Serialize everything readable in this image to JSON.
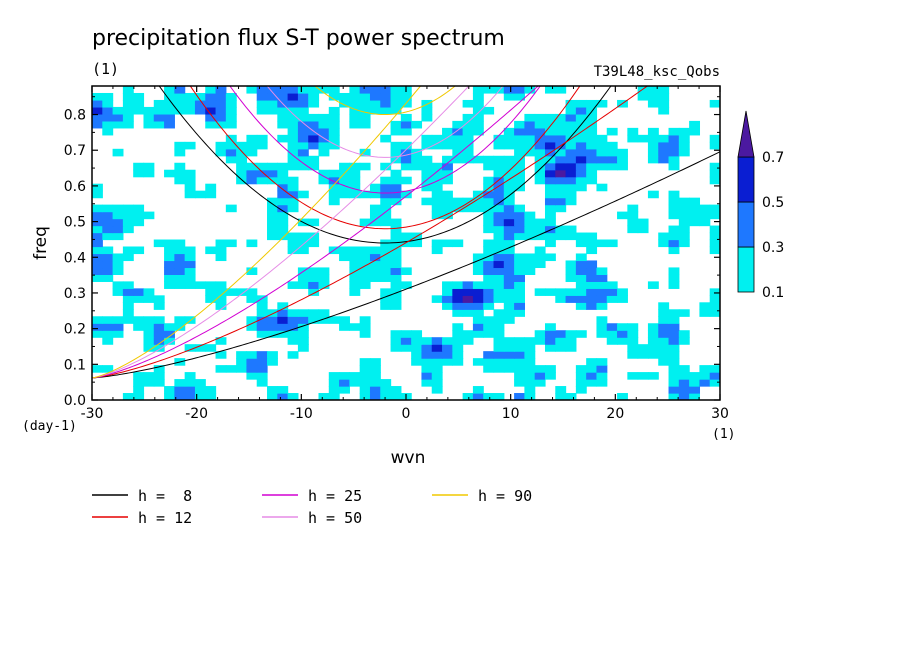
{
  "chart_data": {
    "type": "heatmap",
    "title": "precipitation flux S-T power spectrum",
    "subtitle_left": "(1)",
    "subtitle_right": "T39L48_ksc_Qobs",
    "xlabel": "wvn",
    "ylabel": "freq",
    "x_unit": "(1)",
    "y_unit": "(day-1)",
    "xlim": [
      -30,
      30
    ],
    "ylim": [
      0,
      0.88
    ],
    "x_ticks": [
      -30,
      -20,
      -10,
      0,
      10,
      20,
      30
    ],
    "x_tick_labels": [
      "-30",
      "-20",
      "-10",
      "0",
      "10",
      "20",
      "30"
    ],
    "y_ticks": [
      0.0,
      0.1,
      0.2,
      0.3,
      0.4,
      0.5,
      0.6,
      0.7,
      0.8
    ],
    "y_tick_labels": [
      "0.0",
      "0.1",
      "0.2",
      "0.3",
      "0.4",
      "0.5",
      "0.6",
      "0.7",
      "0.8"
    ],
    "colorbar": {
      "levels": [
        0.1,
        0.3,
        0.5,
        0.7
      ],
      "labels": [
        "0.1",
        "0.3",
        "0.5",
        "0.7"
      ],
      "colors": [
        "#00f0f0",
        "#1e78ff",
        "#0a1ed2",
        "#4b19a0"
      ],
      "extend": "max"
    },
    "legend": [
      {
        "label": "h =  8",
        "h": 8,
        "color": "#000000"
      },
      {
        "label": "h = 12",
        "h": 12,
        "color": "#e60000"
      },
      {
        "label": "h = 25",
        "h": 25,
        "color": "#d200d2"
      },
      {
        "label": "h = 50",
        "h": 50,
        "color": "#e68ce6"
      },
      {
        "label": "h = 90",
        "h": 90,
        "color": "#f0c800"
      }
    ],
    "dispersion_curves": {
      "kelvin_lines_for_h": [
        8,
        12,
        25,
        50,
        90
      ],
      "ig_min_freq": [
        {
          "h": 8,
          "freq": 0.44
        },
        {
          "h": 12,
          "freq": 0.48
        },
        {
          "h": 25,
          "freq": 0.58
        },
        {
          "h": 50,
          "freq": 0.68
        },
        {
          "h": 90,
          "freq": 0.8
        }
      ],
      "freq_at_wvn_minus30": 0.062
    },
    "high_power_regions": [
      {
        "wvn": 6,
        "freq": 0.29,
        "level": 0.7
      },
      {
        "wvn": 15,
        "freq": 0.64,
        "level": 0.7
      },
      {
        "wvn": 14,
        "freq": 0.72,
        "level": 0.5
      },
      {
        "wvn": 3,
        "freq": 0.14,
        "level": 0.5
      },
      {
        "wvn": -12,
        "freq": 0.22,
        "level": 0.5
      },
      {
        "wvn": -9,
        "freq": 0.74,
        "level": 0.5
      },
      {
        "wvn": -11,
        "freq": 0.85,
        "level": 0.5
      },
      {
        "wvn": 10,
        "freq": 0.5,
        "level": 0.5
      },
      {
        "wvn": 9,
        "freq": 0.38,
        "level": 0.5
      },
      {
        "wvn": 19,
        "freq": 0.68,
        "level": 0.3
      }
    ]
  }
}
